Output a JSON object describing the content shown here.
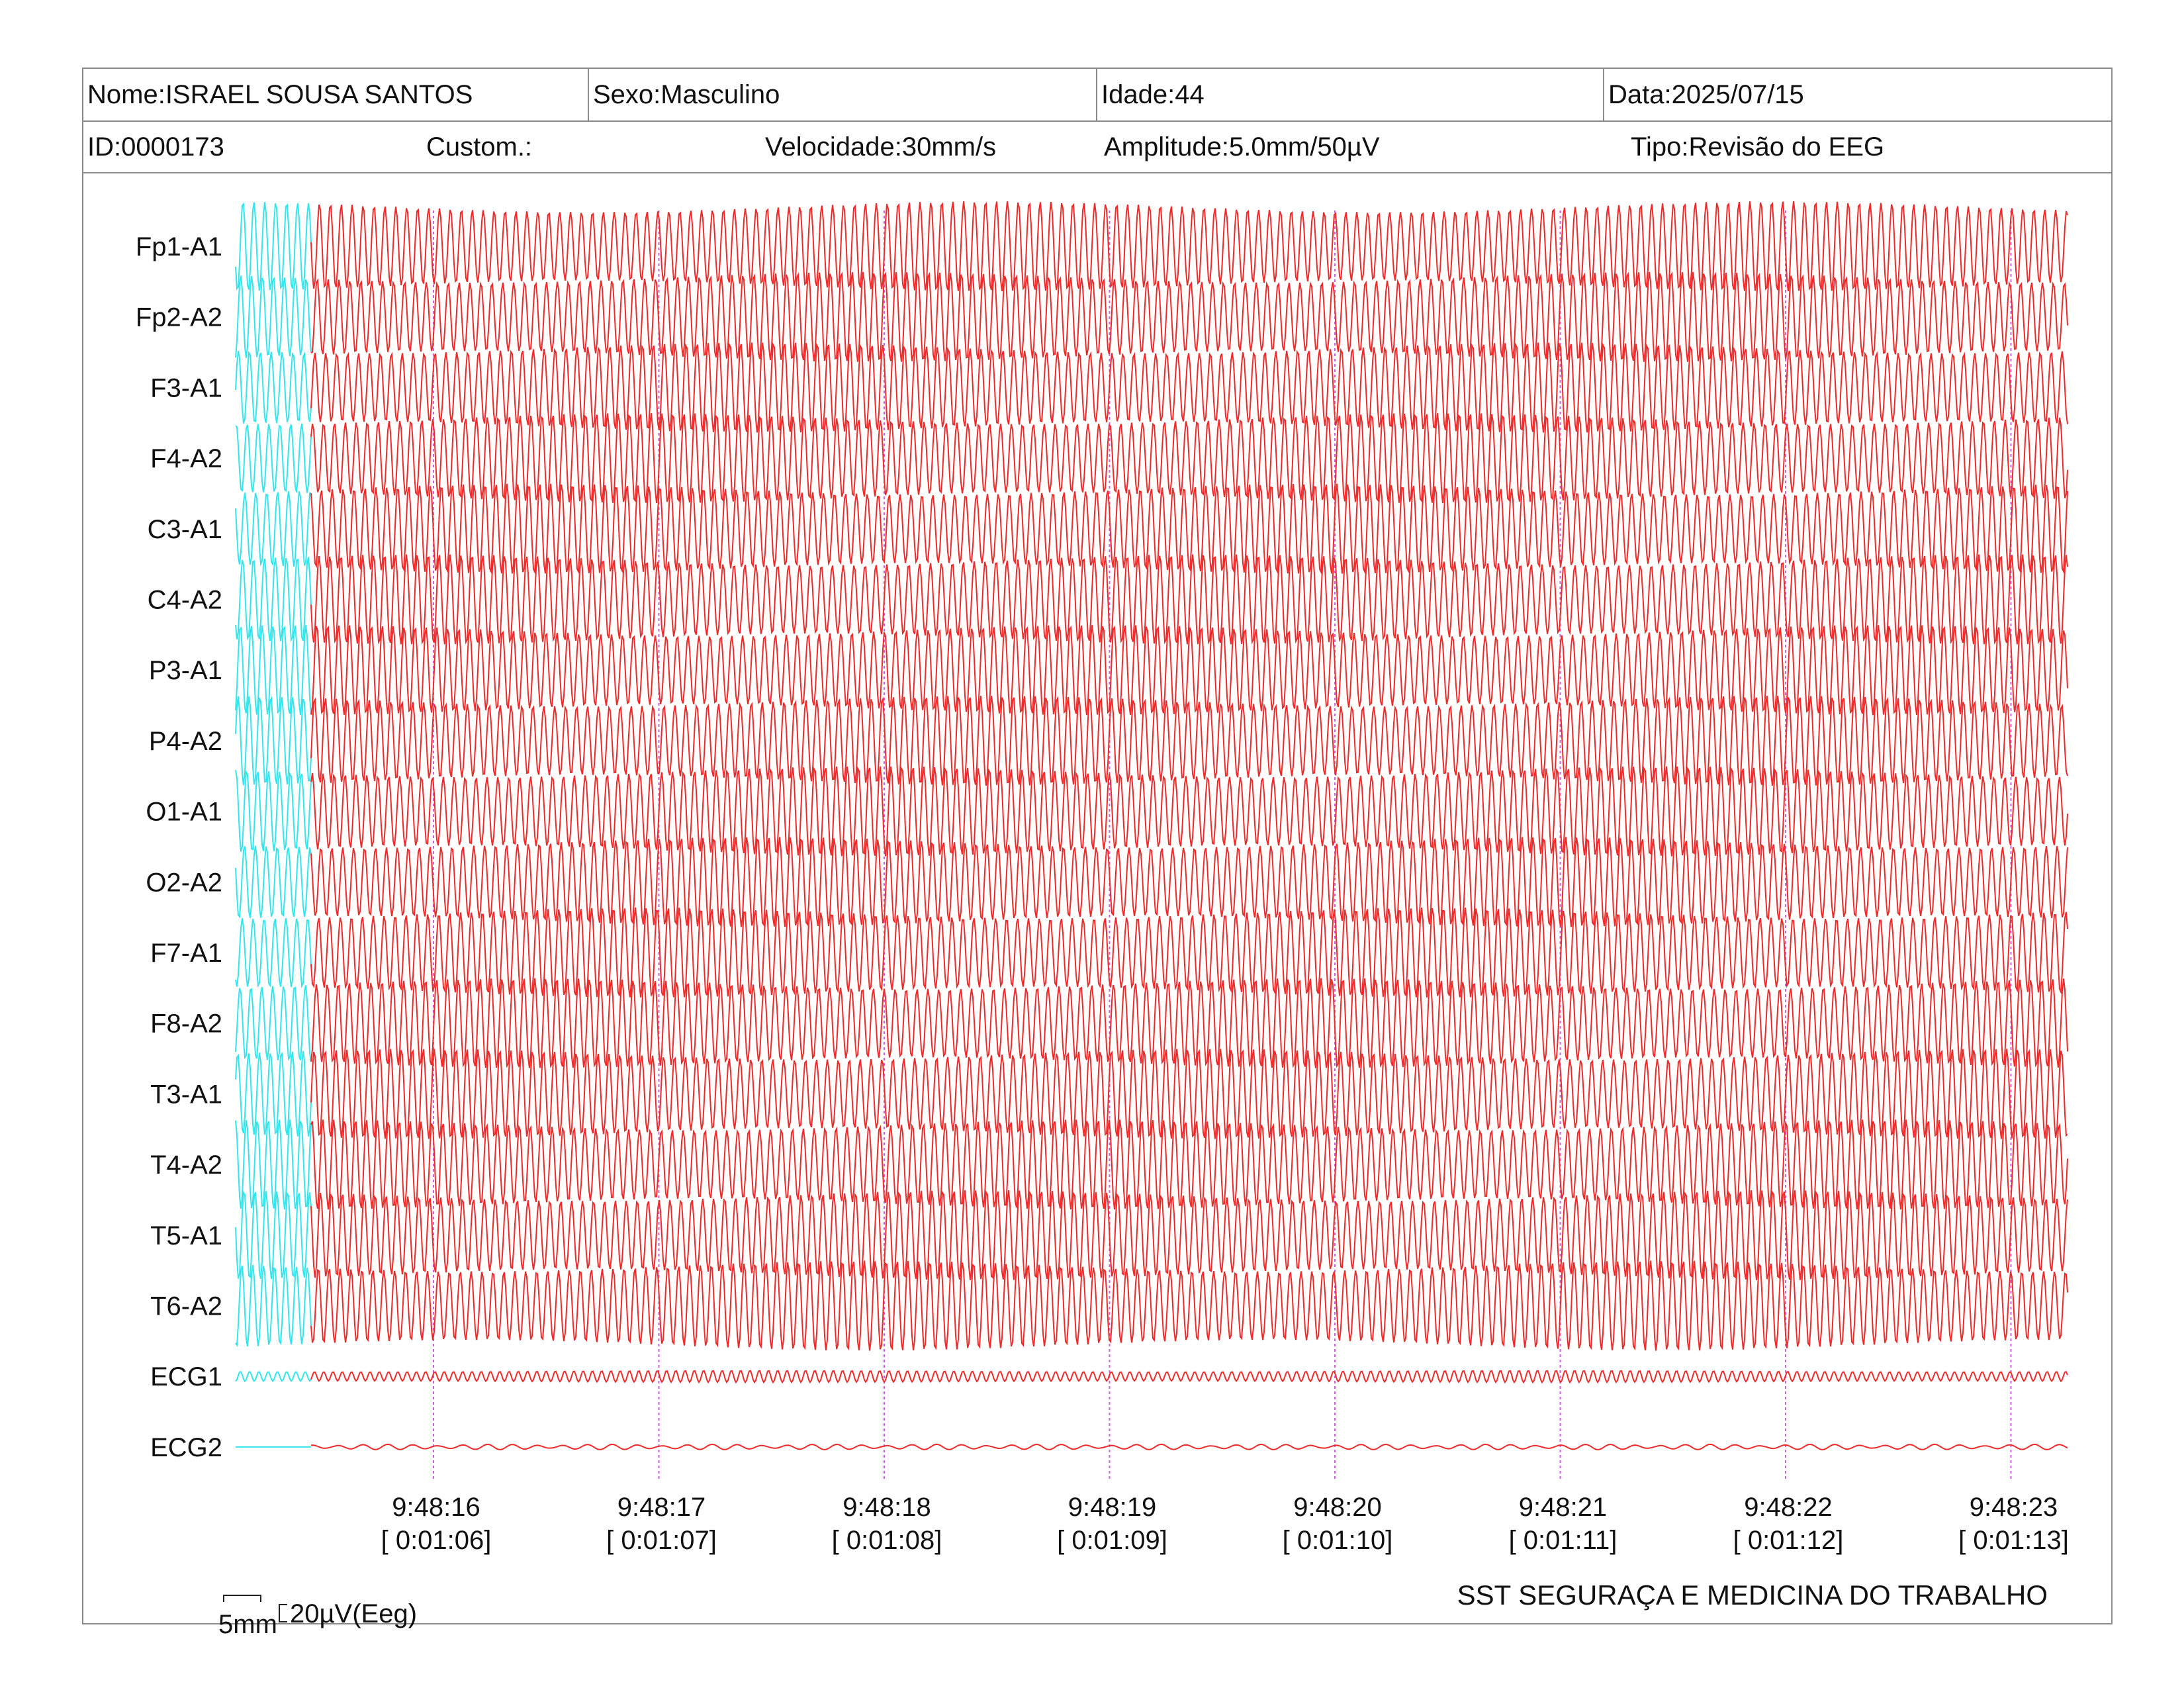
{
  "header": {
    "nome": "Nome:ISRAEL SOUSA SANTOS",
    "sexo": "Sexo:Masculino",
    "idade": "Idade:44",
    "data": "Data:2025/07/15",
    "id": "ID:0000173",
    "custom": "Custom.:",
    "velocidade": "Velocidade:30mm/s",
    "amplitude": "Amplitude:5.0mm/50µV",
    "tipo": "Tipo:Revisão do EEG"
  },
  "channels": [
    "Fp1-A1",
    "Fp2-A2",
    "F3-A1",
    "F4-A2",
    "C3-A1",
    "C4-A2",
    "P3-A1",
    "P4-A2",
    "O1-A1",
    "O2-A2",
    "F7-A1",
    "F8-A2",
    "T3-A1",
    "T4-A2",
    "T5-A1",
    "T6-A2",
    "ECG1",
    "ECG2"
  ],
  "time_marks": [
    {
      "clock": "9:48:16",
      "elapsed": "[ 0:01:06]"
    },
    {
      "clock": "9:48:17",
      "elapsed": "[ 0:01:07]"
    },
    {
      "clock": "9:48:18",
      "elapsed": "[ 0:01:08]"
    },
    {
      "clock": "9:48:19",
      "elapsed": "[ 0:01:09]"
    },
    {
      "clock": "9:48:20",
      "elapsed": "[ 0:01:10]"
    },
    {
      "clock": "9:48:21",
      "elapsed": "[ 0:01:11]"
    },
    {
      "clock": "9:48:22",
      "elapsed": "[ 0:01:12]"
    },
    {
      "clock": "9:48:23",
      "elapsed": "[ 0:01:13]"
    }
  ],
  "scale": {
    "time_label": "5mm",
    "amp_label": "20µV(Eeg)"
  },
  "footer": {
    "company": "SST SEGURAÇA E MEDICINA DO TRABALHO"
  },
  "colors": {
    "calibration_trace": "#33e5ec",
    "eeg_trace": "#ee2a2a",
    "time_marker": "#d060e0",
    "border": "#8a8a8a"
  }
}
